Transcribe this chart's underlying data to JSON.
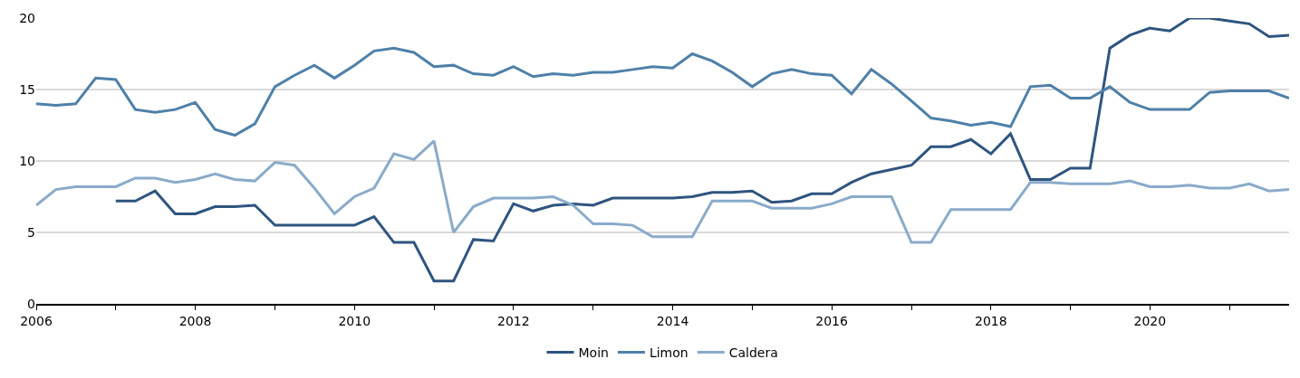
{
  "chart_data": {
    "type": "line",
    "x": [
      "2006-01",
      "2006-04",
      "2006-07",
      "2006-10",
      "2007-01",
      "2007-04",
      "2007-07",
      "2007-10",
      "2008-01",
      "2008-04",
      "2008-07",
      "2008-10",
      "2009-01",
      "2009-04",
      "2009-07",
      "2009-10",
      "2010-01",
      "2010-04",
      "2010-07",
      "2010-10",
      "2011-01",
      "2011-04",
      "2011-07",
      "2011-10",
      "2012-01",
      "2012-04",
      "2012-07",
      "2012-10",
      "2013-01",
      "2013-04",
      "2013-07",
      "2013-10",
      "2014-01",
      "2014-04",
      "2014-07",
      "2014-10",
      "2015-01",
      "2015-04",
      "2015-07",
      "2015-10",
      "2016-01",
      "2016-04",
      "2016-07",
      "2016-10",
      "2017-01",
      "2017-04",
      "2017-07",
      "2017-10",
      "2018-01",
      "2018-04",
      "2018-07",
      "2018-10",
      "2019-01",
      "2019-04",
      "2019-07",
      "2019-10",
      "2020-01",
      "2020-04",
      "2020-07",
      "2020-10",
      "2021-01",
      "2021-04",
      "2021-07",
      "2021-10"
    ],
    "series": [
      {
        "name": "Moin",
        "color": "#2f5580",
        "values": [
          null,
          null,
          null,
          null,
          7.2,
          7.2,
          7.9,
          6.3,
          6.3,
          6.8,
          6.8,
          6.9,
          5.5,
          5.5,
          5.5,
          5.5,
          5.5,
          6.1,
          4.3,
          4.3,
          1.6,
          1.6,
          4.5,
          4.4,
          7.0,
          6.5,
          6.9,
          7.0,
          6.9,
          7.4,
          7.4,
          7.4,
          7.4,
          7.5,
          7.8,
          7.8,
          7.9,
          7.1,
          7.2,
          7.7,
          7.7,
          8.5,
          9.1,
          9.4,
          9.7,
          11.0,
          11.0,
          11.5,
          10.5,
          11.9,
          8.7,
          8.7,
          9.5,
          9.5,
          17.9,
          18.8,
          19.3,
          19.1,
          20.0,
          20.0,
          19.8,
          19.6,
          18.7,
          18.8
        ]
      },
      {
        "name": "Limon",
        "color": "#4f80a8",
        "values": [
          14.0,
          13.9,
          14.0,
          15.8,
          15.7,
          13.6,
          13.4,
          13.6,
          14.1,
          12.2,
          11.8,
          12.6,
          15.2,
          16.0,
          16.7,
          15.8,
          16.7,
          17.7,
          17.9,
          17.6,
          16.6,
          16.7,
          16.1,
          16.0,
          16.6,
          15.9,
          16.1,
          16.0,
          16.2,
          16.2,
          16.4,
          16.6,
          16.5,
          17.5,
          17.0,
          16.2,
          15.2,
          16.1,
          16.4,
          16.1,
          16.0,
          14.7,
          16.4,
          15.4,
          14.2,
          13.0,
          12.8,
          12.5,
          12.7,
          12.4,
          15.2,
          15.3,
          14.4,
          14.4,
          15.2,
          14.1,
          13.6,
          13.6,
          13.6,
          14.8,
          14.9,
          14.9,
          14.9,
          14.4
        ]
      },
      {
        "name": "Caldera",
        "color": "#8aabc9",
        "values": [
          6.9,
          8.0,
          8.2,
          8.2,
          8.2,
          8.8,
          8.8,
          8.5,
          8.7,
          9.1,
          8.7,
          8.6,
          9.9,
          9.7,
          8.1,
          6.3,
          7.5,
          8.1,
          10.5,
          10.1,
          11.4,
          5.0,
          6.8,
          7.4,
          7.4,
          7.4,
          7.5,
          6.9,
          5.6,
          5.6,
          5.5,
          4.7,
          4.7,
          4.7,
          7.2,
          7.2,
          7.2,
          6.7,
          6.7,
          6.7,
          7.0,
          7.5,
          7.5,
          7.5,
          4.3,
          4.3,
          6.6,
          6.6,
          6.6,
          6.6,
          8.5,
          8.5,
          8.4,
          8.4,
          8.4,
          8.6,
          8.2,
          8.2,
          8.3,
          8.1,
          8.1,
          8.4,
          7.9,
          8.0
        ]
      }
    ],
    "xlim": [
      "2006-01",
      "2021-10"
    ],
    "xticks": [
      {
        "value": "2006",
        "label": "2006"
      },
      {
        "value": "2007",
        "label": null
      },
      {
        "value": "2008",
        "label": "2008"
      },
      {
        "value": "2009",
        "label": null
      },
      {
        "value": "2010",
        "label": "2010"
      },
      {
        "value": "2011",
        "label": null
      },
      {
        "value": "2012",
        "label": "2012"
      },
      {
        "value": "2013",
        "label": null
      },
      {
        "value": "2014",
        "label": "2014"
      },
      {
        "value": "2015",
        "label": null
      },
      {
        "value": "2016",
        "label": "2016"
      },
      {
        "value": "2017",
        "label": null
      },
      {
        "value": "2018",
        "label": "2018"
      },
      {
        "value": "2019",
        "label": null
      },
      {
        "value": "2020",
        "label": "2020"
      },
      {
        "value": "2021",
        "label": null
      }
    ],
    "ylim": [
      0,
      20
    ],
    "yticks": [
      0,
      5,
      10,
      15,
      20
    ],
    "grid": "y",
    "legend": "bottom",
    "marker": "none",
    "line_style": "solid"
  }
}
